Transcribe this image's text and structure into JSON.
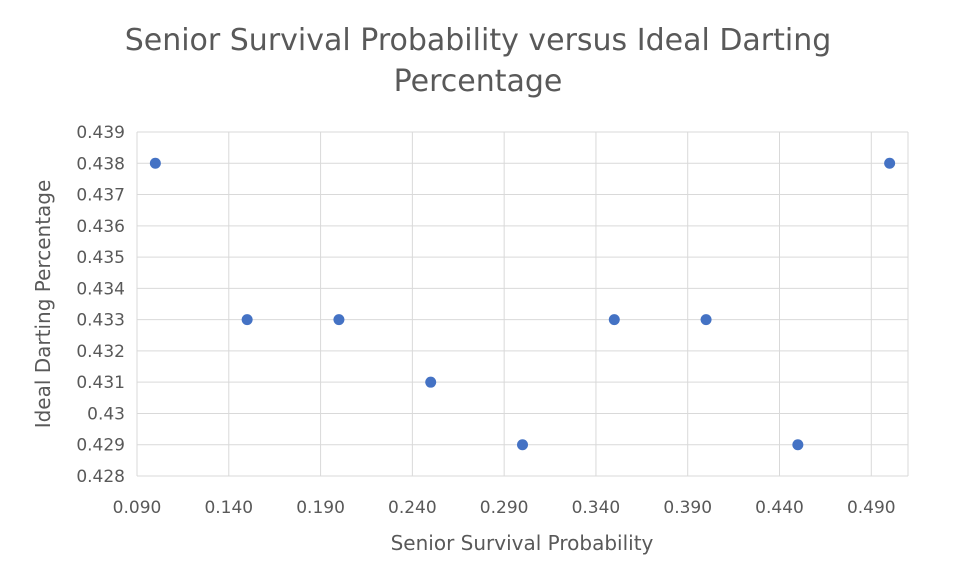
{
  "chart_data": {
    "type": "scatter",
    "title_lines": [
      "Senior Survival Probability versus Ideal Darting",
      "Percentage"
    ],
    "xlabel": "Senior Survival Probability",
    "ylabel": "Ideal Darting Percentage",
    "xlim": [
      0.09,
      0.51
    ],
    "ylim": [
      0.428,
      0.439
    ],
    "x_ticks": [
      0.09,
      0.14,
      0.19,
      0.24,
      0.29,
      0.34,
      0.39,
      0.44,
      0.49
    ],
    "x_tick_labels": [
      "0.090",
      "0.140",
      "0.190",
      "0.240",
      "0.290",
      "0.340",
      "0.390",
      "0.440",
      "0.490"
    ],
    "y_ticks": [
      0.428,
      0.429,
      0.43,
      0.431,
      0.432,
      0.433,
      0.434,
      0.435,
      0.436,
      0.437,
      0.438,
      0.439
    ],
    "y_tick_labels": [
      "0.428",
      "0.429",
      "0.43",
      "0.431",
      "0.432",
      "0.433",
      "0.434",
      "0.435",
      "0.436",
      "0.437",
      "0.438",
      "0.439"
    ],
    "grid": true,
    "marker_color": "#4472c4",
    "grid_color": "#d9d9d9",
    "text_color": "#595959",
    "points": [
      {
        "x": 0.1,
        "y": 0.438
      },
      {
        "x": 0.15,
        "y": 0.433
      },
      {
        "x": 0.2,
        "y": 0.433
      },
      {
        "x": 0.25,
        "y": 0.431
      },
      {
        "x": 0.3,
        "y": 0.429
      },
      {
        "x": 0.35,
        "y": 0.433
      },
      {
        "x": 0.4,
        "y": 0.433
      },
      {
        "x": 0.45,
        "y": 0.429
      },
      {
        "x": 0.5,
        "y": 0.438
      }
    ]
  }
}
